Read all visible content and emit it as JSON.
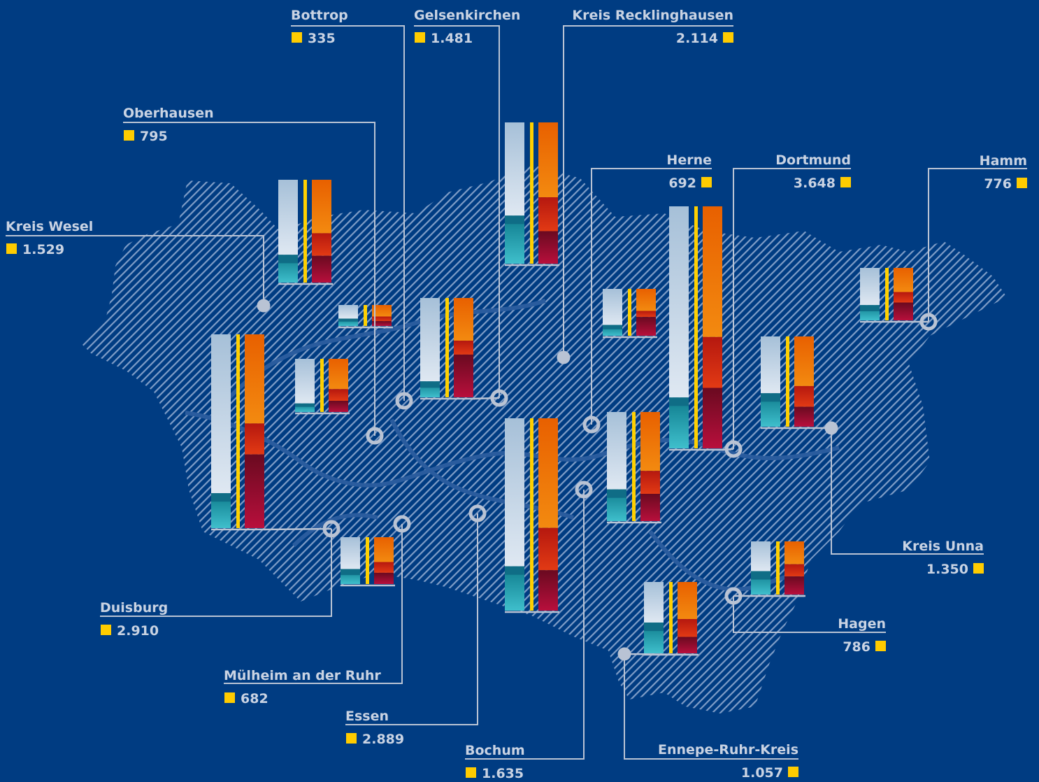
{
  "colors": {
    "background": "#003c82",
    "hatch": "#7f9dc7",
    "leader": "#b9c3d4",
    "label": "#c9d3e3",
    "marker": "#ffcc00",
    "bar_a_top": "#dbe6f1",
    "bar_a_bottom": "#a6c0d8",
    "bar_b_top": "#3fbfcc",
    "bar_b_bottom": "#0e7b8c",
    "bar_c_top": "#3b94b5",
    "bar_c_bottom": "#0f5f82",
    "bar_d": "#ee7000",
    "bar_e": "#d22d10",
    "bar_f": "#a50b2d",
    "yellow_line": "#ffd000"
  },
  "districts": [
    {
      "id": "bottrop",
      "name": "Bottrop",
      "value": "335",
      "shares": [
        0.65,
        0.35
      ],
      "shares2": [
        0.55,
        0.22,
        0.23
      ]
    },
    {
      "id": "gelsenkirchen",
      "name": "Gelsenkirchen",
      "value": "1.481",
      "shares": [
        0.84,
        0.16
      ],
      "shares2": [
        0.43,
        0.14,
        0.43
      ]
    },
    {
      "id": "recklinghausen",
      "name": "Kreis Recklinghausen",
      "value": "2.114",
      "shares": [
        0.66,
        0.34
      ],
      "shares2": [
        0.53,
        0.24,
        0.23
      ]
    },
    {
      "id": "oberhausen",
      "name": "Oberhausen",
      "value": "795",
      "shares": [
        0.84,
        0.16
      ],
      "shares2": [
        0.57,
        0.22,
        0.21
      ]
    },
    {
      "id": "wesel",
      "name": "Kreis Wesel",
      "value": "1.529",
      "shares": [
        0.73,
        0.27
      ],
      "shares2": [
        0.52,
        0.22,
        0.26
      ]
    },
    {
      "id": "herne",
      "name": "Herne",
      "value": "692",
      "shares": [
        0.77,
        0.23
      ],
      "shares2": [
        0.47,
        0.13,
        0.4
      ]
    },
    {
      "id": "dortmund",
      "name": "Dortmund",
      "value": "3.648",
      "shares": [
        0.79,
        0.21
      ],
      "shares2": [
        0.54,
        0.21,
        0.25
      ]
    },
    {
      "id": "hamm",
      "name": "Hamm",
      "value": "776",
      "shares": [
        0.71,
        0.29
      ],
      "shares2": [
        0.46,
        0.2,
        0.34
      ]
    },
    {
      "id": "duisburg",
      "name": "Duisburg",
      "value": "2.910",
      "shares": [
        0.82,
        0.18
      ],
      "shares2": [
        0.46,
        0.16,
        0.38
      ]
    },
    {
      "id": "muelheim",
      "name": "Mülheim an der Ruhr",
      "value": "682",
      "shares": [
        0.68,
        0.32
      ],
      "shares2": [
        0.53,
        0.23,
        0.24
      ]
    },
    {
      "id": "essen",
      "name": "Essen",
      "value": "2.889",
      "shares": [
        0.77,
        0.23
      ],
      "shares2": [
        0.57,
        0.22,
        0.21
      ]
    },
    {
      "id": "bochum",
      "name": "Bochum",
      "value": "1.635",
      "shares": [
        0.71,
        0.29
      ],
      "shares2": [
        0.54,
        0.21,
        0.25
      ]
    },
    {
      "id": "ennepe",
      "name": "Ennepe-Ruhr-Kreis",
      "value": "1.057",
      "shares": [
        0.57,
        0.43
      ],
      "shares2": [
        0.52,
        0.25,
        0.23
      ]
    },
    {
      "id": "hagen",
      "name": "Hagen",
      "value": "786",
      "shares": [
        0.56,
        0.44
      ],
      "shares2": [
        0.43,
        0.23,
        0.34
      ]
    },
    {
      "id": "unna",
      "name": "Kreis Unna",
      "value": "1.350",
      "shares": [
        0.63,
        0.37
      ],
      "shares2": [
        0.55,
        0.23,
        0.22
      ]
    }
  ]
}
